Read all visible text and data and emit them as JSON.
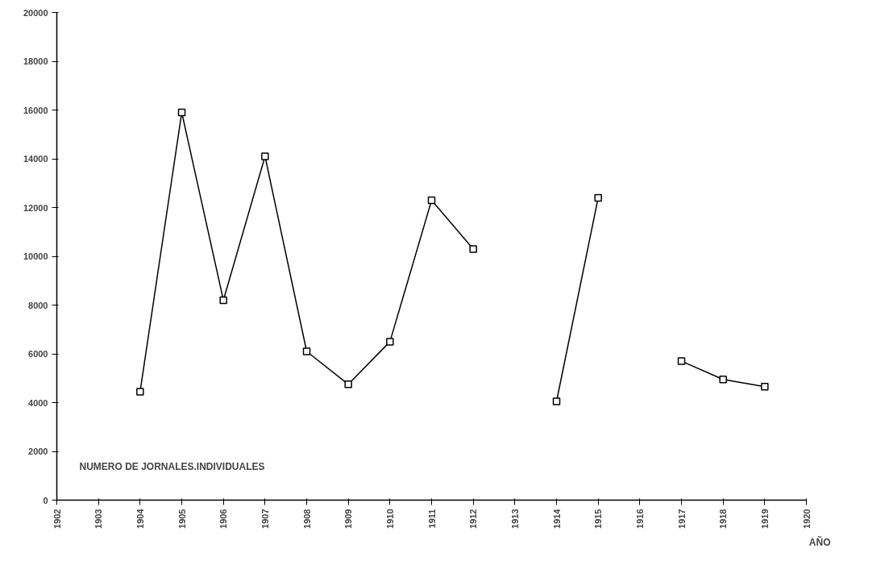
{
  "chart_data": {
    "type": "line",
    "xlabel": "AÑO",
    "annotations": [
      "NUMERO DE JORNALES.INDIVIDUALES"
    ],
    "x": [
      1904,
      1905,
      1906,
      1907,
      1908,
      1909,
      1910,
      1911,
      1912,
      1913,
      1914,
      1915,
      1916,
      1917,
      1918,
      1919
    ],
    "series": [
      {
        "color": "#000000",
        "values": [
          4450,
          15900,
          8200,
          14100,
          6100,
          4750,
          6500,
          12300,
          10300,
          null,
          4050,
          12400,
          null,
          5700,
          4950,
          4650
        ]
      }
    ],
    "xlim": [
      1902,
      1920
    ],
    "xticks": [
      1902,
      1903,
      1904,
      1905,
      1906,
      1907,
      1908,
      1909,
      1910,
      1911,
      1912,
      1913,
      1914,
      1915,
      1916,
      1917,
      1918,
      1919,
      1920
    ],
    "ylim": [
      0,
      20000
    ],
    "yticks": [
      0,
      2000,
      4000,
      6000,
      8000,
      10000,
      12000,
      14000,
      16000,
      18000,
      20000
    ],
    "grid": false,
    "marker": "square",
    "line_style": "solid"
  }
}
